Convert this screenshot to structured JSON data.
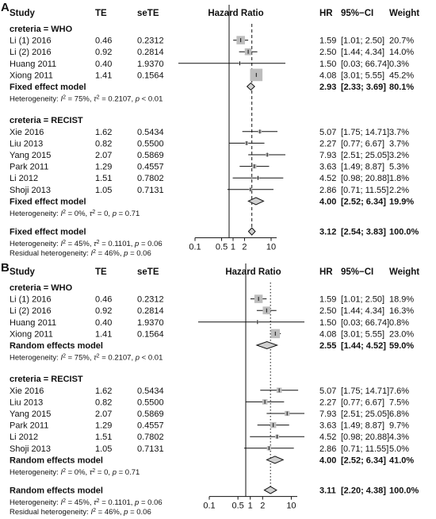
{
  "chart_data": [
    {
      "type": "forest",
      "panel_label": "A",
      "headers": {
        "study": "Study",
        "te": "TE",
        "sete": "seTE",
        "plot": "Hazard Ratio",
        "hr": "HR",
        "ci": "95%−CI",
        "weight": "Weight"
      },
      "x_ticks": [
        0.1,
        0.5,
        1,
        2,
        10
      ],
      "x_tick_labels": [
        "0.1",
        "0.5",
        "1",
        "2",
        "10"
      ],
      "scale": "log",
      "xlim": [
        0.1,
        14
      ],
      "reference_line": 1,
      "pooled_line": 3.12,
      "pooled_line_style": "dashed",
      "groups": [
        {
          "title": "creteria = WHO",
          "studies": [
            {
              "name": "Li (1) 2016",
              "te": "0.46",
              "sete": "0.2312",
              "hr": 1.59,
              "lo": 1.01,
              "hi": 2.5,
              "hr_text": "1.59",
              "ci_text": "[1.01; 2.50]",
              "weight": "20.7%",
              "w": 20.7
            },
            {
              "name": "Li (2) 2016",
              "te": "0.92",
              "sete": "0.2814",
              "hr": 2.5,
              "lo": 1.44,
              "hi": 4.34,
              "hr_text": "2.50",
              "ci_text": "[1.44; 4.34]",
              "weight": "14.0%",
              "w": 14.0
            },
            {
              "name": "Huang 2011",
              "te": "0.40",
              "sete": "1.9370",
              "hr": 1.5,
              "lo": 0.03,
              "hi": 66.74,
              "hr_text": "1.50",
              "ci_text": "[0.03; 66.74]",
              "weight": "0.3%",
              "w": 0.3
            },
            {
              "name": "Xiong 2011",
              "te": "1.41",
              "sete": "0.1564",
              "hr": 4.08,
              "lo": 3.01,
              "hi": 5.55,
              "hr_text": "4.08",
              "ci_text": "[3.01; 5.55]",
              "weight": "45.2%",
              "w": 45.2
            }
          ],
          "summary": {
            "label": "Fixed effect model",
            "hr": 2.93,
            "lo": 2.33,
            "hi": 3.69,
            "hr_text": "2.93",
            "ci_text": "[2.33; 3.69]",
            "weight": "80.1%"
          },
          "heterogeneity": {
            "prefix": "Heterogeneity: ",
            "i2": "75%",
            "tau2": "0.2107",
            "p": "< 0.01"
          }
        },
        {
          "title": "creteria = RECIST",
          "studies": [
            {
              "name": "Xie 2016",
              "te": "1.62",
              "sete": "0.5434",
              "hr": 5.07,
              "lo": 1.75,
              "hi": 14.71,
              "hr_text": "5.07",
              "ci_text": "[1.75; 14.71]",
              "weight": "3.7%",
              "w": 3.7
            },
            {
              "name": "Liu 2013",
              "te": "0.82",
              "sete": "0.5500",
              "hr": 2.27,
              "lo": 0.77,
              "hi": 6.67,
              "hr_text": "2.27",
              "ci_text": "[0.77; 6.67]",
              "weight": "3.7%",
              "w": 3.7
            },
            {
              "name": "Yang 2015",
              "te": "2.07",
              "sete": "0.5869",
              "hr": 7.93,
              "lo": 2.51,
              "hi": 25.05,
              "hr_text": "7.93",
              "ci_text": "[2.51; 25.05]",
              "weight": "3.2%",
              "w": 3.2
            },
            {
              "name": "Park 2011",
              "te": "1.29",
              "sete": "0.4557",
              "hr": 3.63,
              "lo": 1.49,
              "hi": 8.87,
              "hr_text": "3.63",
              "ci_text": "[1.49; 8.87]",
              "weight": "5.3%",
              "w": 5.3
            },
            {
              "name": "Li 2012",
              "te": "1.51",
              "sete": "0.7802",
              "hr": 4.52,
              "lo": 0.98,
              "hi": 20.88,
              "hr_text": "4.52",
              "ci_text": "[0.98; 20.88]",
              "weight": "1.8%",
              "w": 1.8
            },
            {
              "name": "Shoji 2013",
              "te": "1.05",
              "sete": "0.7131",
              "hr": 2.86,
              "lo": 0.71,
              "hi": 11.55,
              "hr_text": "2.86",
              "ci_text": "[0.71; 11.55]",
              "weight": "2.2%",
              "w": 2.2
            }
          ],
          "summary": {
            "label": "Fixed effect model",
            "hr": 4.0,
            "lo": 2.52,
            "hi": 6.34,
            "hr_text": "4.00",
            "ci_text": "[2.52; 6.34]",
            "weight": "19.9%"
          },
          "heterogeneity": {
            "prefix": "Heterogeneity: ",
            "i2": "0%",
            "tau2": "0",
            "p": "0.71"
          }
        }
      ],
      "overall": {
        "label": "Fixed effect model",
        "hr": 3.12,
        "lo": 2.54,
        "hi": 3.83,
        "hr_text": "3.12",
        "ci_text": "[2.54; 3.83]",
        "weight": "100.0%"
      },
      "overall_heterogeneity": {
        "prefix": "Heterogeneity: ",
        "i2": "45%",
        "tau2": "0.1101",
        "p": "0.06"
      },
      "residual_heterogeneity": {
        "prefix": "Residual heterogeneity: ",
        "i2": "46%",
        "p": "0.06"
      }
    },
    {
      "type": "forest",
      "panel_label": "B",
      "headers": {
        "study": "Study",
        "te": "TE",
        "sete": "seTE",
        "plot": "Hazard Ratio",
        "hr": "HR",
        "ci": "95%−CI",
        "weight": "Weight"
      },
      "x_ticks": [
        0.1,
        0.5,
        1,
        2,
        10
      ],
      "x_tick_labels": [
        "0.1",
        "0.5",
        "1",
        "2",
        "10"
      ],
      "scale": "log",
      "xlim": [
        0.1,
        14
      ],
      "reference_line": 1,
      "pooled_line": 3.11,
      "pooled_line_style": "dotted",
      "groups": [
        {
          "title": "creteria = WHO",
          "studies": [
            {
              "name": "Li (1) 2016",
              "te": "0.46",
              "sete": "0.2312",
              "hr": 1.59,
              "lo": 1.01,
              "hi": 2.5,
              "hr_text": "1.59",
              "ci_text": "[1.01; 2.50]",
              "weight": "18.9%",
              "w": 18.9
            },
            {
              "name": "Li (2) 2016",
              "te": "0.92",
              "sete": "0.2814",
              "hr": 2.5,
              "lo": 1.44,
              "hi": 4.34,
              "hr_text": "2.50",
              "ci_text": "[1.44; 4.34]",
              "weight": "16.3%",
              "w": 16.3
            },
            {
              "name": "Huang 2011",
              "te": "0.40",
              "sete": "1.9370",
              "hr": 1.5,
              "lo": 0.03,
              "hi": 66.74,
              "hr_text": "1.50",
              "ci_text": "[0.03; 66.74]",
              "weight": "0.8%",
              "w": 0.8
            },
            {
              "name": "Xiong 2011",
              "te": "1.41",
              "sete": "0.1564",
              "hr": 4.08,
              "lo": 3.01,
              "hi": 5.55,
              "hr_text": "4.08",
              "ci_text": "[3.01; 5.55]",
              "weight": "23.0%",
              "w": 23.0
            }
          ],
          "summary": {
            "label": "Random effects model",
            "hr": 2.55,
            "lo": 1.44,
            "hi": 4.52,
            "hr_text": "2.55",
            "ci_text": "[1.44; 4.52]",
            "weight": "59.0%"
          },
          "heterogeneity": {
            "prefix": "Heterogeneity: ",
            "i2": "75%",
            "tau2": "0.2107",
            "p": "< 0.01"
          }
        },
        {
          "title": "creteria = RECIST",
          "studies": [
            {
              "name": "Xie 2016",
              "te": "1.62",
              "sete": "0.5434",
              "hr": 5.07,
              "lo": 1.75,
              "hi": 14.71,
              "hr_text": "5.07",
              "ci_text": "[1.75; 14.71]",
              "weight": "7.6%",
              "w": 7.6
            },
            {
              "name": "Liu 2013",
              "te": "0.82",
              "sete": "0.5500",
              "hr": 2.27,
              "lo": 0.77,
              "hi": 6.67,
              "hr_text": "2.27",
              "ci_text": "[0.77; 6.67]",
              "weight": "7.5%",
              "w": 7.5
            },
            {
              "name": "Yang 2015",
              "te": "2.07",
              "sete": "0.5869",
              "hr": 7.93,
              "lo": 2.51,
              "hi": 25.05,
              "hr_text": "7.93",
              "ci_text": "[2.51; 25.05]",
              "weight": "6.8%",
              "w": 6.8
            },
            {
              "name": "Park 2011",
              "te": "1.29",
              "sete": "0.4557",
              "hr": 3.63,
              "lo": 1.49,
              "hi": 8.87,
              "hr_text": "3.63",
              "ci_text": "[1.49; 8.87]",
              "weight": "9.7%",
              "w": 9.7
            },
            {
              "name": "Li 2012",
              "te": "1.51",
              "sete": "0.7802",
              "hr": 4.52,
              "lo": 0.98,
              "hi": 20.88,
              "hr_text": "4.52",
              "ci_text": "[0.98; 20.88]",
              "weight": "4.3%",
              "w": 4.3
            },
            {
              "name": "Shoji 2013",
              "te": "1.05",
              "sete": "0.7131",
              "hr": 2.86,
              "lo": 0.71,
              "hi": 11.55,
              "hr_text": "2.86",
              "ci_text": "[0.71; 11.55]",
              "weight": "5.0%",
              "w": 5.0
            }
          ],
          "summary": {
            "label": "Random effects model",
            "hr": 4.0,
            "lo": 2.52,
            "hi": 6.34,
            "hr_text": "4.00",
            "ci_text": "[2.52; 6.34]",
            "weight": "41.0%"
          },
          "heterogeneity": {
            "prefix": "Heterogeneity: ",
            "i2": "0%",
            "tau2": "0",
            "p": "0.71"
          }
        }
      ],
      "overall": {
        "label": "Random effects model",
        "hr": 3.11,
        "lo": 2.2,
        "hi": 4.38,
        "hr_text": "3.11",
        "ci_text": "[2.20; 4.38]",
        "weight": "100.0%"
      },
      "overall_heterogeneity": {
        "prefix": "Heterogeneity: ",
        "i2": "45%",
        "tau2": "0.1101",
        "p": "0.06"
      },
      "residual_heterogeneity": {
        "prefix": "Residual heterogeneity: ",
        "i2": "46%",
        "p": "0.06"
      }
    }
  ]
}
